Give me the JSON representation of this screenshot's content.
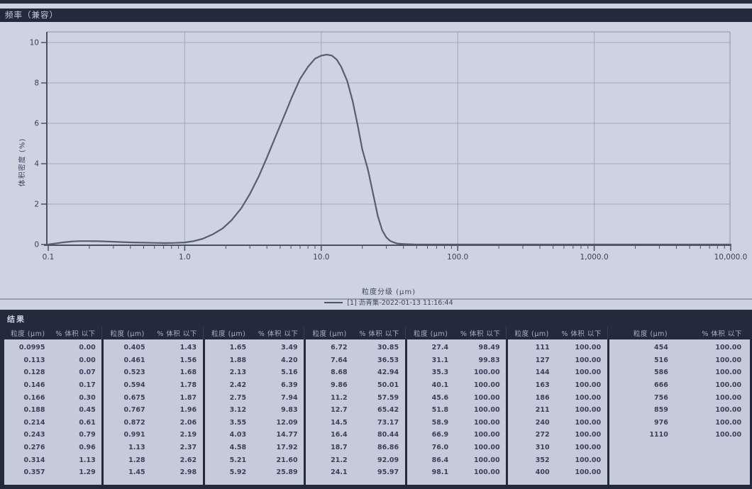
{
  "window": {
    "title": "频率（兼容）"
  },
  "chart": {
    "ylabel": "体积密度 (%)",
    "xlabel": "粒度分级 (μm)",
    "legend_label": "[1] 沥青集-2022-01-13 11:16:44"
  },
  "chart_data": {
    "type": "line",
    "title": "频率（兼容）",
    "xlabel": "粒度分级 (μm)",
    "ylabel": "体积密度 (%)",
    "x_scale": "log",
    "xlim": [
      0.1,
      10000
    ],
    "ylim": [
      0,
      10
    ],
    "grid": true,
    "legend_position": "bottom",
    "y_ticks": [
      0,
      2,
      4,
      6,
      8,
      10
    ],
    "x_tick_values": [
      0.1,
      1,
      10,
      100,
      1000,
      10000
    ],
    "x_tick_labels": [
      "0.1",
      "1.0",
      "10.0",
      "100.0",
      "1,000.0",
      "10,000.0"
    ],
    "series": [
      {
        "name": "[1] 沥青集-2022-01-13 11:16:44",
        "x": [
          0.1,
          0.115,
          0.13,
          0.15,
          0.17,
          0.2,
          0.24,
          0.29,
          0.35,
          0.42,
          0.5,
          0.6,
          0.72,
          0.85,
          1.0,
          1.15,
          1.35,
          1.6,
          1.9,
          2.2,
          2.6,
          3.0,
          3.5,
          4.0,
          4.6,
          5.3,
          6.1,
          7.0,
          8.0,
          9.0,
          10.0,
          11.0,
          12.0,
          13.0,
          14.0,
          15.5,
          17.0,
          18.5,
          20.0,
          22.0,
          24.0,
          26.0,
          28.0,
          30.0,
          32.0,
          34.0,
          36.0,
          40.0,
          50.0,
          100.0,
          1000.0,
          10000.0
        ],
        "y": [
          0.0,
          0.06,
          0.11,
          0.15,
          0.17,
          0.17,
          0.16,
          0.14,
          0.12,
          0.1,
          0.09,
          0.08,
          0.07,
          0.08,
          0.1,
          0.16,
          0.28,
          0.5,
          0.8,
          1.2,
          1.8,
          2.5,
          3.4,
          4.3,
          5.3,
          6.3,
          7.3,
          8.2,
          8.8,
          9.2,
          9.35,
          9.4,
          9.35,
          9.15,
          8.8,
          8.1,
          7.1,
          5.9,
          4.7,
          3.7,
          2.5,
          1.4,
          0.7,
          0.35,
          0.18,
          0.1,
          0.05,
          0.02,
          0.0,
          0.0,
          0.0,
          0.0
        ]
      }
    ]
  },
  "results": {
    "section_title": "结果",
    "size_header": "粒度 (μm)",
    "pct_header": "% 体积 以下",
    "groups": [
      {
        "rows": [
          [
            "0.0995",
            "0.00"
          ],
          [
            "0.113",
            "0.00"
          ],
          [
            "0.128",
            "0.07"
          ],
          [
            "0.146",
            "0.17"
          ],
          [
            "0.166",
            "0.30"
          ],
          [
            "0.188",
            "0.45"
          ],
          [
            "0.214",
            "0.61"
          ],
          [
            "0.243",
            "0.79"
          ],
          [
            "0.276",
            "0.96"
          ],
          [
            "0.314",
            "1.13"
          ],
          [
            "0.357",
            "1.29"
          ]
        ]
      },
      {
        "rows": [
          [
            "0.405",
            "1.43"
          ],
          [
            "0.461",
            "1.56"
          ],
          [
            "0.523",
            "1.68"
          ],
          [
            "0.594",
            "1.78"
          ],
          [
            "0.675",
            "1.87"
          ],
          [
            "0.767",
            "1.96"
          ],
          [
            "0.872",
            "2.06"
          ],
          [
            "0.991",
            "2.19"
          ],
          [
            "1.13",
            "2.37"
          ],
          [
            "1.28",
            "2.62"
          ],
          [
            "1.45",
            "2.98"
          ]
        ]
      },
      {
        "rows": [
          [
            "1.65",
            "3.49"
          ],
          [
            "1.88",
            "4.20"
          ],
          [
            "2.13",
            "5.16"
          ],
          [
            "2.42",
            "6.39"
          ],
          [
            "2.75",
            "7.94"
          ],
          [
            "3.12",
            "9.83"
          ],
          [
            "3.55",
            "12.09"
          ],
          [
            "4.03",
            "14.77"
          ],
          [
            "4.58",
            "17.92"
          ],
          [
            "5.21",
            "21.60"
          ],
          [
            "5.92",
            "25.89"
          ]
        ]
      },
      {
        "rows": [
          [
            "6.72",
            "30.85"
          ],
          [
            "7.64",
            "36.53"
          ],
          [
            "8.68",
            "42.94"
          ],
          [
            "9.86",
            "50.01"
          ],
          [
            "11.2",
            "57.59"
          ],
          [
            "12.7",
            "65.42"
          ],
          [
            "14.5",
            "73.17"
          ],
          [
            "16.4",
            "80.44"
          ],
          [
            "18.7",
            "86.86"
          ],
          [
            "21.2",
            "92.09"
          ],
          [
            "24.1",
            "95.97"
          ]
        ]
      },
      {
        "rows": [
          [
            "27.4",
            "98.49"
          ],
          [
            "31.1",
            "99.83"
          ],
          [
            "35.3",
            "100.00"
          ],
          [
            "40.1",
            "100.00"
          ],
          [
            "45.6",
            "100.00"
          ],
          [
            "51.8",
            "100.00"
          ],
          [
            "58.9",
            "100.00"
          ],
          [
            "66.9",
            "100.00"
          ],
          [
            "76.0",
            "100.00"
          ],
          [
            "86.4",
            "100.00"
          ],
          [
            "98.1",
            "100.00"
          ]
        ]
      },
      {
        "rows": [
          [
            "111",
            "100.00"
          ],
          [
            "127",
            "100.00"
          ],
          [
            "144",
            "100.00"
          ],
          [
            "163",
            "100.00"
          ],
          [
            "186",
            "100.00"
          ],
          [
            "211",
            "100.00"
          ],
          [
            "240",
            "100.00"
          ],
          [
            "272",
            "100.00"
          ],
          [
            "310",
            "100.00"
          ],
          [
            "352",
            "100.00"
          ],
          [
            "400",
            "100.00"
          ]
        ]
      },
      {
        "rows": [
          [
            "454",
            "100.00"
          ],
          [
            "516",
            "100.00"
          ],
          [
            "586",
            "100.00"
          ],
          [
            "666",
            "100.00"
          ],
          [
            "756",
            "100.00"
          ],
          [
            "859",
            "100.00"
          ],
          [
            "976",
            "100.00"
          ],
          [
            "1110",
            "100.00"
          ]
        ]
      }
    ]
  }
}
